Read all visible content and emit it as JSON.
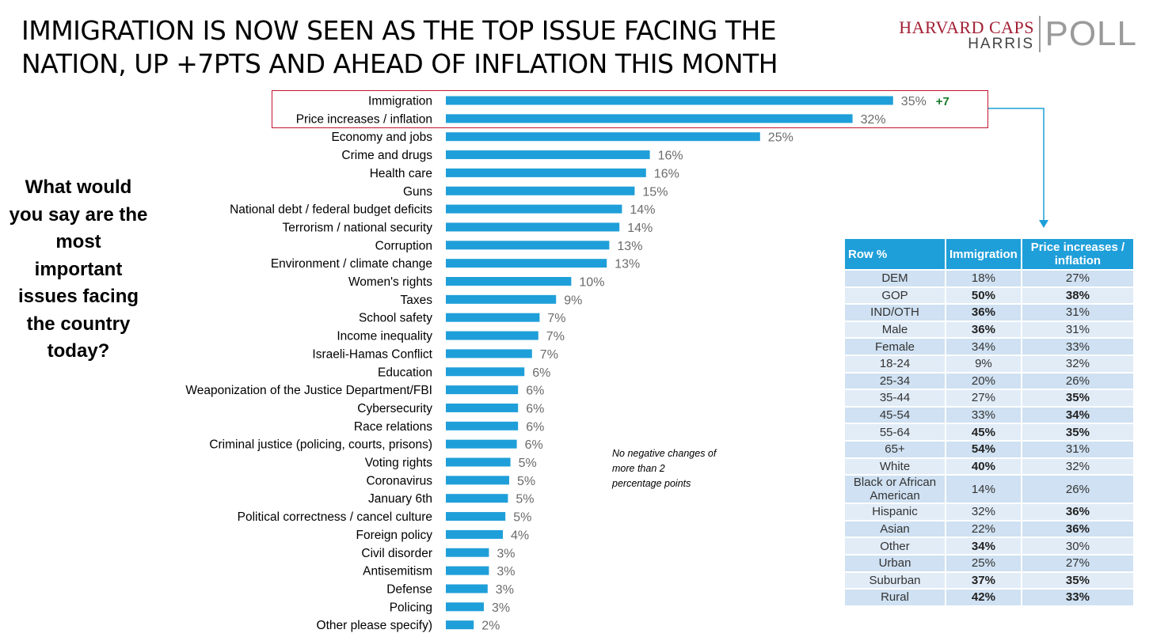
{
  "header": {
    "title": "IMMIGRATION IS NOW SEEN AS THE TOP ISSUE FACING THE\nNATION, UP +7PTS AND AHEAD OF INFLATION THIS MONTH",
    "logo_line1": "HARVARD CAPS",
    "logo_line2": "HARRIS",
    "logo_poll": "POLL"
  },
  "question": "What would\nyou say are the\nmost\nimportant\nissues facing\nthe country\ntoday?",
  "note": "No negative changes of\nmore than 2\npercentage points",
  "colors": {
    "bar": "#1f9fd9",
    "change": "#1a7a2a",
    "highlight": "#c0152f",
    "header": "#1f9fd9"
  },
  "chart_data": {
    "type": "bar",
    "orientation": "horizontal",
    "categories": [
      "Immigration",
      "Price increases / inflation",
      "Economy and jobs",
      "Crime and drugs",
      "Health care",
      "Guns",
      "National debt / federal budget deficits",
      "Terrorism / national security",
      "Corruption",
      "Environment / climate change",
      "Women's rights",
      "Taxes",
      "School safety",
      "Income inequality",
      "Israeli-Hamas Conflict",
      "Education",
      "Weaponization of the Justice Department/FBI",
      "Cybersecurity",
      "Race relations",
      "Criminal justice (policing, courts, prisons)",
      "Voting rights",
      "Coronavirus",
      "January 6th",
      "Political correctness / cancel culture",
      "Foreign policy",
      "Civil disorder",
      "Antisemitism",
      "Defense",
      "Policing",
      "Other please specify)"
    ],
    "values": [
      35,
      32,
      25,
      16,
      16,
      15,
      14,
      14,
      13,
      13,
      10,
      9,
      7,
      7,
      7,
      6,
      6,
      6,
      6,
      6,
      5,
      5,
      5,
      5,
      4,
      3,
      3,
      3,
      3,
      2
    ],
    "raw_values": [
      35.3,
      32.1,
      24.8,
      16.1,
      15.8,
      14.9,
      13.9,
      13.7,
      12.9,
      12.7,
      9.9,
      8.7,
      7.4,
      7.3,
      6.8,
      6.2,
      5.7,
      5.7,
      5.7,
      5.6,
      5.1,
      5.0,
      4.9,
      4.7,
      4.5,
      3.4,
      3.4,
      3.3,
      3.0,
      2.2
    ],
    "value_labels": [
      "35%",
      "32%",
      "25%",
      "16%",
      "16%",
      "15%",
      "14%",
      "14%",
      "13%",
      "13%",
      "10%",
      "9%",
      "7%",
      "7%",
      "7%",
      "6%",
      "6%",
      "6%",
      "6%",
      "6%",
      "5%",
      "5%",
      "5%",
      "5%",
      "4%",
      "3%",
      "3%",
      "3%",
      "3%",
      "2%"
    ],
    "annotations": [
      {
        "category": "Immigration",
        "text": "+7"
      }
    ],
    "xlim": [
      0,
      35.5
    ],
    "grid": false,
    "legend": "none"
  },
  "crosstab": {
    "headers": [
      "Row %",
      "Immigration",
      "Price increases / inflation"
    ],
    "rows": [
      {
        "label": "DEM",
        "imm": "18%",
        "imm_bold": false,
        "price": "27%",
        "price_bold": false
      },
      {
        "label": "GOP",
        "imm": "50%",
        "imm_bold": true,
        "price": "38%",
        "price_bold": true
      },
      {
        "label": "IND/OTH",
        "imm": "36%",
        "imm_bold": true,
        "price": "31%",
        "price_bold": false
      },
      {
        "label": "Male",
        "imm": "36%",
        "imm_bold": true,
        "price": "31%",
        "price_bold": false
      },
      {
        "label": "Female",
        "imm": "34%",
        "imm_bold": false,
        "price": "33%",
        "price_bold": false
      },
      {
        "label": "18-24",
        "imm": "9%",
        "imm_bold": false,
        "price": "32%",
        "price_bold": false
      },
      {
        "label": "25-34",
        "imm": "20%",
        "imm_bold": false,
        "price": "26%",
        "price_bold": false
      },
      {
        "label": "35-44",
        "imm": "27%",
        "imm_bold": false,
        "price": "35%",
        "price_bold": true
      },
      {
        "label": "45-54",
        "imm": "33%",
        "imm_bold": false,
        "price": "34%",
        "price_bold": true
      },
      {
        "label": "55-64",
        "imm": "45%",
        "imm_bold": true,
        "price": "35%",
        "price_bold": true
      },
      {
        "label": "65+",
        "imm": "54%",
        "imm_bold": true,
        "price": "31%",
        "price_bold": false
      },
      {
        "label": "White",
        "imm": "40%",
        "imm_bold": true,
        "price": "32%",
        "price_bold": false
      },
      {
        "label": "Black or African American",
        "imm": "14%",
        "imm_bold": false,
        "price": "26%",
        "price_bold": false
      },
      {
        "label": "Hispanic",
        "imm": "32%",
        "imm_bold": false,
        "price": "36%",
        "price_bold": true
      },
      {
        "label": "Asian",
        "imm": "22%",
        "imm_bold": false,
        "price": "36%",
        "price_bold": true
      },
      {
        "label": "Other",
        "imm": "34%",
        "imm_bold": true,
        "price": "30%",
        "price_bold": false
      },
      {
        "label": "Urban",
        "imm": "25%",
        "imm_bold": false,
        "price": "27%",
        "price_bold": false
      },
      {
        "label": "Suburban",
        "imm": "37%",
        "imm_bold": true,
        "price": "35%",
        "price_bold": true
      },
      {
        "label": "Rural",
        "imm": "42%",
        "imm_bold": true,
        "price": "33%",
        "price_bold": true
      }
    ]
  }
}
